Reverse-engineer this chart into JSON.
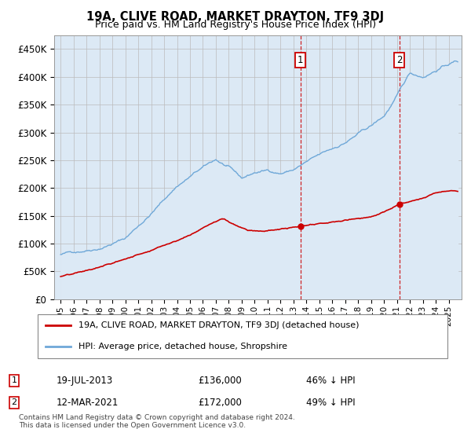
{
  "title": "19A, CLIVE ROAD, MARKET DRAYTON, TF9 3DJ",
  "subtitle": "Price paid vs. HM Land Registry's House Price Index (HPI)",
  "hpi_label": "HPI: Average price, detached house, Shropshire",
  "property_label": "19A, CLIVE ROAD, MARKET DRAYTON, TF9 3DJ (detached house)",
  "sale1_date_x": 2013.54,
  "sale1_price": 136000,
  "sale1_label": "19-JUL-2013",
  "sale1_pct": "46% ↓ HPI",
  "sale2_date_x": 2021.19,
  "sale2_price": 172000,
  "sale2_label": "12-MAR-2021",
  "sale2_pct": "49% ↓ HPI",
  "ylim_min": 0,
  "ylim_max": 475000,
  "xlim_min": 1994.5,
  "xlim_max": 2026.0,
  "hpi_color": "#6fa8d8",
  "hpi_fill_color": "#dce9f5",
  "property_color": "#cc0000",
  "vline_color": "#cc0000",
  "background_color": "#dce9f5",
  "plot_bg": "#ffffff",
  "grid_color": "#bbbbbb",
  "footnote": "Contains HM Land Registry data © Crown copyright and database right 2024.\nThis data is licensed under the Open Government Licence v3.0.",
  "yticks": [
    0,
    50000,
    100000,
    150000,
    200000,
    250000,
    300000,
    350000,
    400000,
    450000
  ],
  "xticks": [
    1995,
    1996,
    1997,
    1998,
    1999,
    2000,
    2001,
    2002,
    2003,
    2004,
    2005,
    2006,
    2007,
    2008,
    2009,
    2010,
    2011,
    2012,
    2013,
    2014,
    2015,
    2016,
    2017,
    2018,
    2019,
    2020,
    2021,
    2022,
    2023,
    2024,
    2025
  ]
}
